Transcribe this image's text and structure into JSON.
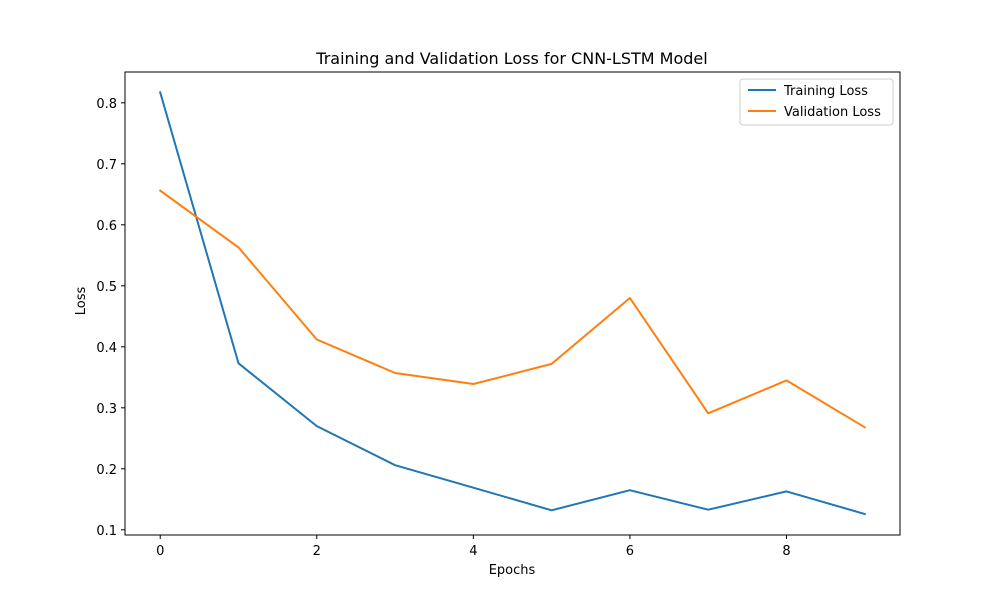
{
  "chart_data": {
    "type": "line",
    "title": "Training and Validation Loss for CNN-LSTM Model",
    "xlabel": "Epochs",
    "ylabel": "Loss",
    "x": [
      0,
      1,
      2,
      3,
      4,
      5,
      6,
      7,
      8,
      9
    ],
    "xlim": [
      -0.45,
      9.45
    ],
    "ylim": [
      0.0915,
      0.8505
    ],
    "xticks": [
      0,
      2,
      4,
      6,
      8
    ],
    "yticks": [
      0.1,
      0.2,
      0.3,
      0.4,
      0.5,
      0.6,
      0.7,
      0.8
    ],
    "xtick_labels": [
      "0",
      "2",
      "4",
      "6",
      "8"
    ],
    "ytick_labels": [
      "0.1",
      "0.2",
      "0.3",
      "0.4",
      "0.5",
      "0.6",
      "0.7",
      "0.8"
    ],
    "grid": false,
    "legend_position": "top-right",
    "series": [
      {
        "name": "Training Loss",
        "color": "#1f77b4",
        "values": [
          0.817,
          0.373,
          0.27,
          0.206,
          0.169,
          0.132,
          0.165,
          0.133,
          0.163,
          0.126
        ]
      },
      {
        "name": "Validation Loss",
        "color": "#ff7f0e",
        "values": [
          0.656,
          0.563,
          0.412,
          0.357,
          0.339,
          0.372,
          0.48,
          0.291,
          0.345,
          0.268
        ]
      }
    ]
  }
}
